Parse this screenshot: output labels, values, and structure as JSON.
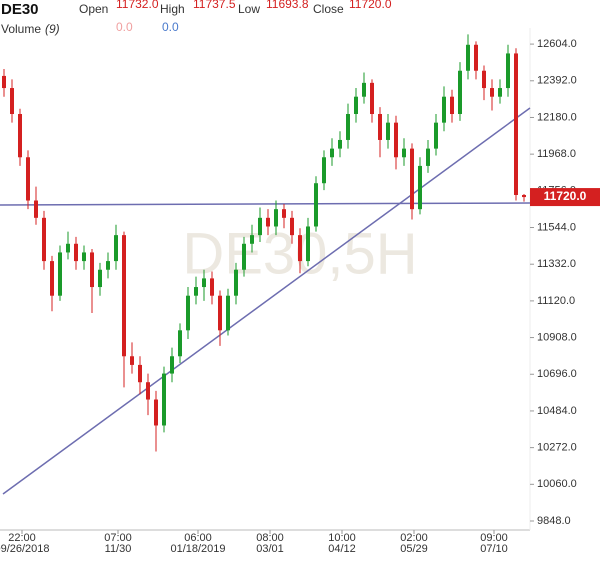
{
  "chart_data": {
    "type": "candlestick",
    "symbol": "DE30",
    "watermark": "DE30,5H",
    "header": {
      "open_label": "Open",
      "open": "11732.0",
      "high_label": "High",
      "high": "11737.5",
      "low_label": "Low",
      "low": "11693.8",
      "close_label": "Close",
      "close": "11720.0"
    },
    "volume": {
      "label": "Volume",
      "period": "(9)",
      "value_a": "0.0",
      "value_b": "0.0"
    },
    "current_price_label": "11720.0",
    "up_color": "#1a9a2a",
    "down_color": "#d42020",
    "ylim": [
      9796,
      12697
    ],
    "yticks": [
      {
        "value": 12604,
        "label": "12604.0"
      },
      {
        "value": 12392,
        "label": "12392.0"
      },
      {
        "value": 12180,
        "label": "12180.0"
      },
      {
        "value": 11968,
        "label": "11968.0"
      },
      {
        "value": 11756,
        "label": "11756.0"
      },
      {
        "value": 11544,
        "label": "11544.0"
      },
      {
        "value": 11332,
        "label": "11332.0"
      },
      {
        "value": 11120,
        "label": "11120.0"
      },
      {
        "value": 10908,
        "label": "10908.0"
      },
      {
        "value": 10696,
        "label": "10696.0"
      },
      {
        "value": 10484,
        "label": "10484.0"
      },
      {
        "value": 10272,
        "label": "10272.0"
      },
      {
        "value": 10060,
        "label": "10060.0"
      },
      {
        "value": 9848,
        "label": "9848.0"
      }
    ],
    "categories": [
      null,
      "22:00",
      null,
      null,
      null,
      null,
      null,
      null,
      null,
      null,
      null,
      null,
      null,
      "07:00",
      null,
      null,
      null,
      null,
      null,
      null,
      null,
      null,
      null,
      "06:00",
      null,
      null,
      null,
      null,
      null,
      null,
      null,
      null,
      "08:00",
      null,
      null,
      null,
      null,
      null,
      null,
      null,
      null,
      "10:00",
      null,
      null,
      null,
      null,
      null,
      null,
      null,
      null,
      "02:00",
      null,
      null,
      null,
      null,
      null,
      null,
      null,
      null,
      null,
      "09:00",
      null,
      null,
      null,
      null,
      null
    ],
    "dates": [
      null,
      "09/26/2018",
      null,
      null,
      null,
      null,
      null,
      null,
      null,
      null,
      null,
      null,
      null,
      "11/30",
      null,
      null,
      null,
      null,
      null,
      null,
      null,
      null,
      null,
      "01/18/2019",
      null,
      null,
      null,
      null,
      null,
      null,
      null,
      null,
      "03/01",
      null,
      null,
      null,
      null,
      null,
      null,
      null,
      null,
      "04/12",
      null,
      null,
      null,
      null,
      null,
      null,
      null,
      null,
      "05/29",
      null,
      null,
      null,
      null,
      null,
      null,
      null,
      null,
      null,
      "07/10",
      null,
      null,
      null,
      null,
      null
    ],
    "candles": [
      [
        12420,
        12460,
        12300,
        12350
      ],
      [
        12350,
        12400,
        12150,
        12200
      ],
      [
        12200,
        12230,
        11900,
        11950
      ],
      [
        11950,
        11990,
        11650,
        11700
      ],
      [
        11700,
        11780,
        11560,
        11600
      ],
      [
        11600,
        11640,
        11300,
        11350
      ],
      [
        11350,
        11380,
        11060,
        11150
      ],
      [
        11150,
        11440,
        11120,
        11400
      ],
      [
        11400,
        11520,
        11360,
        11450
      ],
      [
        11450,
        11490,
        11300,
        11350
      ],
      [
        11350,
        11440,
        11300,
        11400
      ],
      [
        11400,
        11420,
        11050,
        11200
      ],
      [
        11200,
        11340,
        11150,
        11300
      ],
      [
        11300,
        11400,
        11250,
        11350
      ],
      [
        11350,
        11560,
        11300,
        11500
      ],
      [
        11500,
        11520,
        10620,
        10800
      ],
      [
        10800,
        10880,
        10700,
        10750
      ],
      [
        10750,
        10800,
        10580,
        10650
      ],
      [
        10650,
        10700,
        10460,
        10550
      ],
      [
        10550,
        10600,
        10250,
        10400
      ],
      [
        10400,
        10740,
        10360,
        10700
      ],
      [
        10700,
        10850,
        10650,
        10800
      ],
      [
        10800,
        10990,
        10760,
        10950
      ],
      [
        10950,
        11200,
        10900,
        11150
      ],
      [
        11150,
        11260,
        11100,
        11200
      ],
      [
        11200,
        11300,
        11120,
        11250
      ],
      [
        11250,
        11290,
        11100,
        11150
      ],
      [
        11150,
        11180,
        10860,
        10950
      ],
      [
        10950,
        11190,
        10920,
        11150
      ],
      [
        11150,
        11340,
        11100,
        11300
      ],
      [
        11300,
        11490,
        11260,
        11450
      ],
      [
        11450,
        11560,
        11400,
        11500
      ],
      [
        11500,
        11660,
        11460,
        11600
      ],
      [
        11600,
        11650,
        11500,
        11550
      ],
      [
        11550,
        11700,
        11500,
        11650
      ],
      [
        11650,
        11680,
        11540,
        11600
      ],
      [
        11600,
        11640,
        11450,
        11500
      ],
      [
        11500,
        11540,
        11280,
        11350
      ],
      [
        11350,
        11600,
        11320,
        11550
      ],
      [
        11550,
        11840,
        11520,
        11800
      ],
      [
        11800,
        11990,
        11760,
        11950
      ],
      [
        11950,
        12060,
        11900,
        12000
      ],
      [
        12000,
        12100,
        11950,
        12050
      ],
      [
        12050,
        12260,
        12000,
        12200
      ],
      [
        12200,
        12350,
        12150,
        12300
      ],
      [
        12300,
        12440,
        12260,
        12380
      ],
      [
        12380,
        12400,
        12150,
        12200
      ],
      [
        12200,
        12240,
        11950,
        12050
      ],
      [
        12050,
        12200,
        12000,
        12150
      ],
      [
        12150,
        12190,
        11880,
        11950
      ],
      [
        11950,
        12060,
        11900,
        12000
      ],
      [
        12000,
        12030,
        11590,
        11650
      ],
      [
        11650,
        11950,
        11620,
        11900
      ],
      [
        11900,
        12050,
        11860,
        12000
      ],
      [
        12000,
        12200,
        11960,
        12150
      ],
      [
        12150,
        12360,
        12100,
        12300
      ],
      [
        12300,
        12340,
        12150,
        12200
      ],
      [
        12200,
        12500,
        12160,
        12450
      ],
      [
        12450,
        12660,
        12400,
        12600
      ],
      [
        12600,
        12620,
        12400,
        12450
      ],
      [
        12450,
        12480,
        12280,
        12350
      ],
      [
        12350,
        12400,
        12220,
        12300
      ],
      [
        12300,
        12400,
        12260,
        12350
      ],
      [
        12350,
        12600,
        12300,
        12550
      ],
      [
        12550,
        12580,
        11700,
        11732
      ],
      [
        11732,
        11737.5,
        11693.8,
        11720
      ]
    ]
  }
}
